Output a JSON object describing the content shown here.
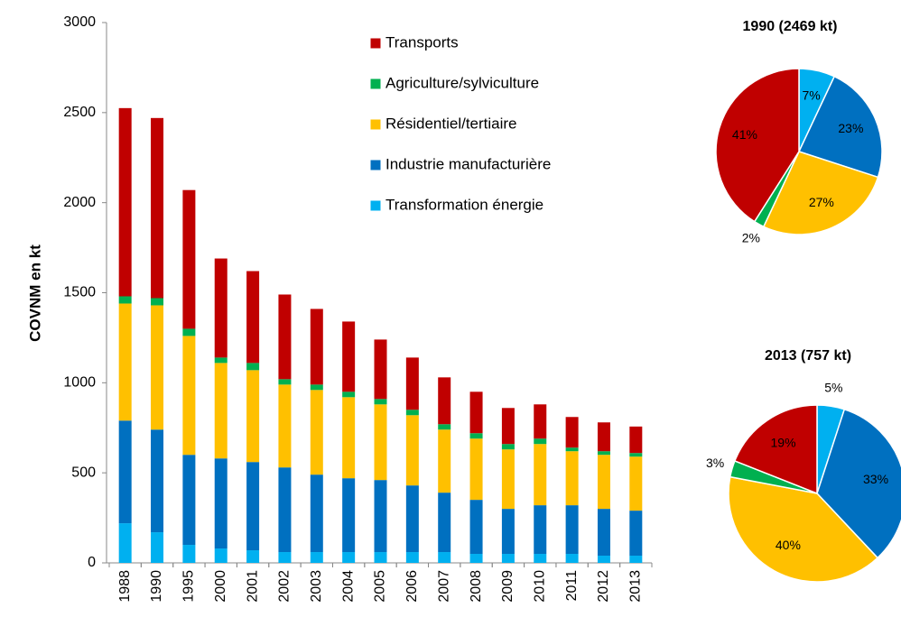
{
  "chart_data": [
    {
      "type": "bar",
      "stacked": true,
      "ylabel": "COVNM en kt",
      "categories": [
        "1988",
        "1990",
        "1995",
        "2000",
        "2001",
        "2002",
        "2003",
        "2004",
        "2005",
        "2006",
        "2007",
        "2008",
        "2009",
        "2010",
        "2011",
        "2012",
        "2013"
      ],
      "series": [
        {
          "name": "Transformation énergie",
          "color": "#00b0f0",
          "values": [
            220,
            170,
            100,
            80,
            70,
            60,
            60,
            60,
            60,
            60,
            60,
            50,
            50,
            50,
            50,
            40,
            40
          ]
        },
        {
          "name": "Industrie manufacturière",
          "color": "#0070c0",
          "values": [
            570,
            570,
            500,
            500,
            490,
            470,
            430,
            410,
            400,
            370,
            330,
            300,
            250,
            270,
            270,
            260,
            250
          ]
        },
        {
          "name": "Résidentiel/tertiaire",
          "color": "#ffc000",
          "values": [
            650,
            690,
            660,
            530,
            510,
            460,
            470,
            450,
            420,
            390,
            350,
            340,
            330,
            340,
            300,
            300,
            300
          ]
        },
        {
          "name": "Agriculture/sylviculture",
          "color": "#00b050",
          "values": [
            40,
            40,
            40,
            30,
            40,
            30,
            30,
            30,
            30,
            30,
            30,
            30,
            30,
            30,
            20,
            20,
            20
          ]
        },
        {
          "name": "Transports",
          "color": "#c00000",
          "values": [
            1045,
            1000,
            770,
            550,
            510,
            470,
            420,
            390,
            330,
            290,
            260,
            230,
            200,
            190,
            170,
            160,
            147
          ]
        }
      ],
      "ylim": [
        0,
        3000
      ],
      "yticks": [
        0,
        500,
        1000,
        1500,
        2000,
        2500,
        3000
      ],
      "legend": "top-center"
    },
    {
      "type": "pie",
      "title": "1990  (2469 kt)",
      "values": [
        7,
        23,
        27,
        2,
        41
      ],
      "value_labels": [
        "7%",
        "23%",
        "27%",
        "2%",
        "41%"
      ],
      "colors": [
        "#00b0f0",
        "#0070c0",
        "#ffc000",
        "#00b050",
        "#c00000"
      ]
    },
    {
      "type": "pie",
      "title": "2013  (757 kt)",
      "values": [
        5,
        33,
        40,
        3,
        19
      ],
      "value_labels": [
        "5%",
        "33%",
        "40%",
        "3%",
        "19%"
      ],
      "colors": [
        "#00b0f0",
        "#0070c0",
        "#ffc000",
        "#00b050",
        "#c00000"
      ]
    }
  ]
}
